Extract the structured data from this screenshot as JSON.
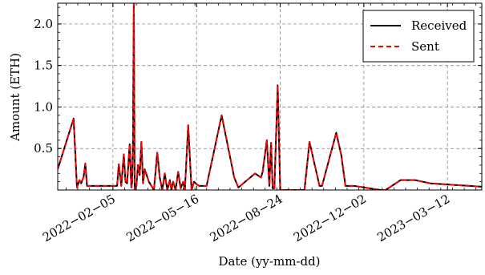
{
  "chart_data": {
    "type": "line",
    "title": "",
    "xlabel": "Date (yy-mm-dd)",
    "ylabel": "Amount (ETH)",
    "xlim": [
      "2021-12-01",
      "2023-04-22"
    ],
    "ylim": [
      0,
      2.25
    ],
    "grid": true,
    "legend_position": "top-right",
    "x_ticks": [
      "2022-02-05",
      "2022-05-16",
      "2022-08-24",
      "2022-12-02",
      "2023-03-12"
    ],
    "x_tick_labels": [
      "2022−02−05",
      "2022−05−16",
      "2022−08−24",
      "2022−12−02",
      "2023−03−12"
    ],
    "y_ticks": [
      0.5,
      1.0,
      1.5,
      2.0
    ],
    "y_tick_labels": [
      "0.5",
      "1.0",
      "1.5",
      "2.0"
    ],
    "series": [
      {
        "name": "Received",
        "color": "#000000",
        "style": "solid",
        "x": [
          "2021-12-01",
          "2021-12-20",
          "2021-12-24",
          "2021-12-27",
          "2021-12-29",
          "2022-01-01",
          "2022-01-03",
          "2022-01-05",
          "2022-01-09",
          "2022-02-10",
          "2022-02-12",
          "2022-02-15",
          "2022-02-18",
          "2022-02-20",
          "2022-02-22",
          "2022-02-25",
          "2022-02-27",
          "2022-02-28",
          "2022-03-01",
          "2022-03-02",
          "2022-03-03",
          "2022-03-05",
          "2022-03-07",
          "2022-03-09",
          "2022-03-11",
          "2022-03-13",
          "2022-03-15",
          "2022-03-20",
          "2022-03-23",
          "2022-03-26",
          "2022-03-30",
          "2022-04-02",
          "2022-04-05",
          "2022-04-08",
          "2022-04-11",
          "2022-04-14",
          "2022-04-16",
          "2022-04-18",
          "2022-04-21",
          "2022-04-24",
          "2022-04-27",
          "2022-04-30",
          "2022-05-02",
          "2022-05-06",
          "2022-05-10",
          "2022-05-13",
          "2022-05-16",
          "2022-05-19",
          "2022-05-23",
          "2022-05-28",
          "2022-06-15",
          "2022-06-30",
          "2022-07-05",
          "2022-07-25",
          "2022-08-01",
          "2022-08-03",
          "2022-08-08",
          "2022-08-11",
          "2022-08-13",
          "2022-08-15",
          "2022-08-17",
          "2022-08-21",
          "2022-08-24",
          "2022-08-28",
          "2022-09-15",
          "2022-09-22",
          "2022-09-28",
          "2022-10-10",
          "2022-10-13",
          "2022-10-30",
          "2022-11-05",
          "2022-11-10",
          "2022-11-20",
          "2022-12-22",
          "2022-12-28",
          "2023-01-15",
          "2023-02-01",
          "2023-02-20",
          "2023-04-22"
        ],
        "values": [
          0.25,
          0.86,
          0.03,
          0.12,
          0.08,
          0.16,
          0.32,
          0.05,
          0.05,
          0.05,
          0.31,
          0.05,
          0.43,
          0.1,
          0.08,
          0.55,
          0.03,
          0.1,
          0.6,
          2.3,
          0.0,
          0.05,
          0.3,
          0.18,
          0.58,
          0.08,
          0.25,
          0.1,
          0.05,
          0.0,
          0.45,
          0.15,
          0.0,
          0.2,
          0.0,
          0.12,
          0.0,
          0.1,
          0.0,
          0.22,
          0.02,
          0.1,
          0.0,
          0.78,
          0.0,
          0.1,
          0.07,
          0.05,
          0.05,
          0.05,
          0.9,
          0.15,
          0.03,
          0.2,
          0.15,
          0.22,
          0.6,
          0.05,
          0.57,
          0.02,
          0.02,
          1.26,
          0.0,
          0.0,
          0.0,
          0.0,
          0.58,
          0.05,
          0.05,
          0.69,
          0.42,
          0.05,
          0.05,
          0.0,
          0.0,
          0.12,
          0.12,
          0.08,
          0.04
        ]
      },
      {
        "name": "Sent",
        "color": "#ff0000",
        "style": "dashed",
        "x": [
          "2021-12-01",
          "2021-12-20",
          "2021-12-24",
          "2021-12-27",
          "2021-12-29",
          "2022-01-01",
          "2022-01-03",
          "2022-01-05",
          "2022-01-09",
          "2022-02-10",
          "2022-02-12",
          "2022-02-15",
          "2022-02-18",
          "2022-02-20",
          "2022-02-22",
          "2022-02-25",
          "2022-02-27",
          "2022-02-28",
          "2022-03-01",
          "2022-03-02",
          "2022-03-03",
          "2022-03-05",
          "2022-03-07",
          "2022-03-09",
          "2022-03-11",
          "2022-03-13",
          "2022-03-15",
          "2022-03-20",
          "2022-03-23",
          "2022-03-26",
          "2022-03-30",
          "2022-04-02",
          "2022-04-05",
          "2022-04-08",
          "2022-04-11",
          "2022-04-14",
          "2022-04-16",
          "2022-04-18",
          "2022-04-21",
          "2022-04-24",
          "2022-04-27",
          "2022-04-30",
          "2022-05-02",
          "2022-05-06",
          "2022-05-10",
          "2022-05-13",
          "2022-05-16",
          "2022-05-19",
          "2022-05-23",
          "2022-05-28",
          "2022-06-15",
          "2022-06-30",
          "2022-07-05",
          "2022-07-25",
          "2022-08-01",
          "2022-08-03",
          "2022-08-08",
          "2022-08-11",
          "2022-08-13",
          "2022-08-15",
          "2022-08-17",
          "2022-08-21",
          "2022-08-24",
          "2022-08-28",
          "2022-09-15",
          "2022-09-22",
          "2022-09-28",
          "2022-10-10",
          "2022-10-13",
          "2022-10-30",
          "2022-11-05",
          "2022-11-10",
          "2022-11-20",
          "2022-12-22",
          "2022-12-28",
          "2023-01-15",
          "2023-02-01",
          "2023-02-20",
          "2023-04-22"
        ],
        "values": [
          0.25,
          0.86,
          0.03,
          0.12,
          0.08,
          0.16,
          0.32,
          0.05,
          0.05,
          0.05,
          0.31,
          0.05,
          0.43,
          0.1,
          0.08,
          0.55,
          0.03,
          0.1,
          0.6,
          2.3,
          0.0,
          0.05,
          0.3,
          0.18,
          0.58,
          0.08,
          0.25,
          0.1,
          0.05,
          0.0,
          0.45,
          0.15,
          0.0,
          0.2,
          0.0,
          0.12,
          0.0,
          0.1,
          0.0,
          0.22,
          0.02,
          0.1,
          0.0,
          0.78,
          0.0,
          0.1,
          0.07,
          0.05,
          0.05,
          0.05,
          0.9,
          0.15,
          0.03,
          0.2,
          0.15,
          0.22,
          0.6,
          0.05,
          0.57,
          0.02,
          0.02,
          1.26,
          0.0,
          0.0,
          0.0,
          0.0,
          0.58,
          0.05,
          0.05,
          0.69,
          0.42,
          0.05,
          0.05,
          0.0,
          0.0,
          0.12,
          0.12,
          0.08,
          0.04
        ]
      }
    ]
  }
}
